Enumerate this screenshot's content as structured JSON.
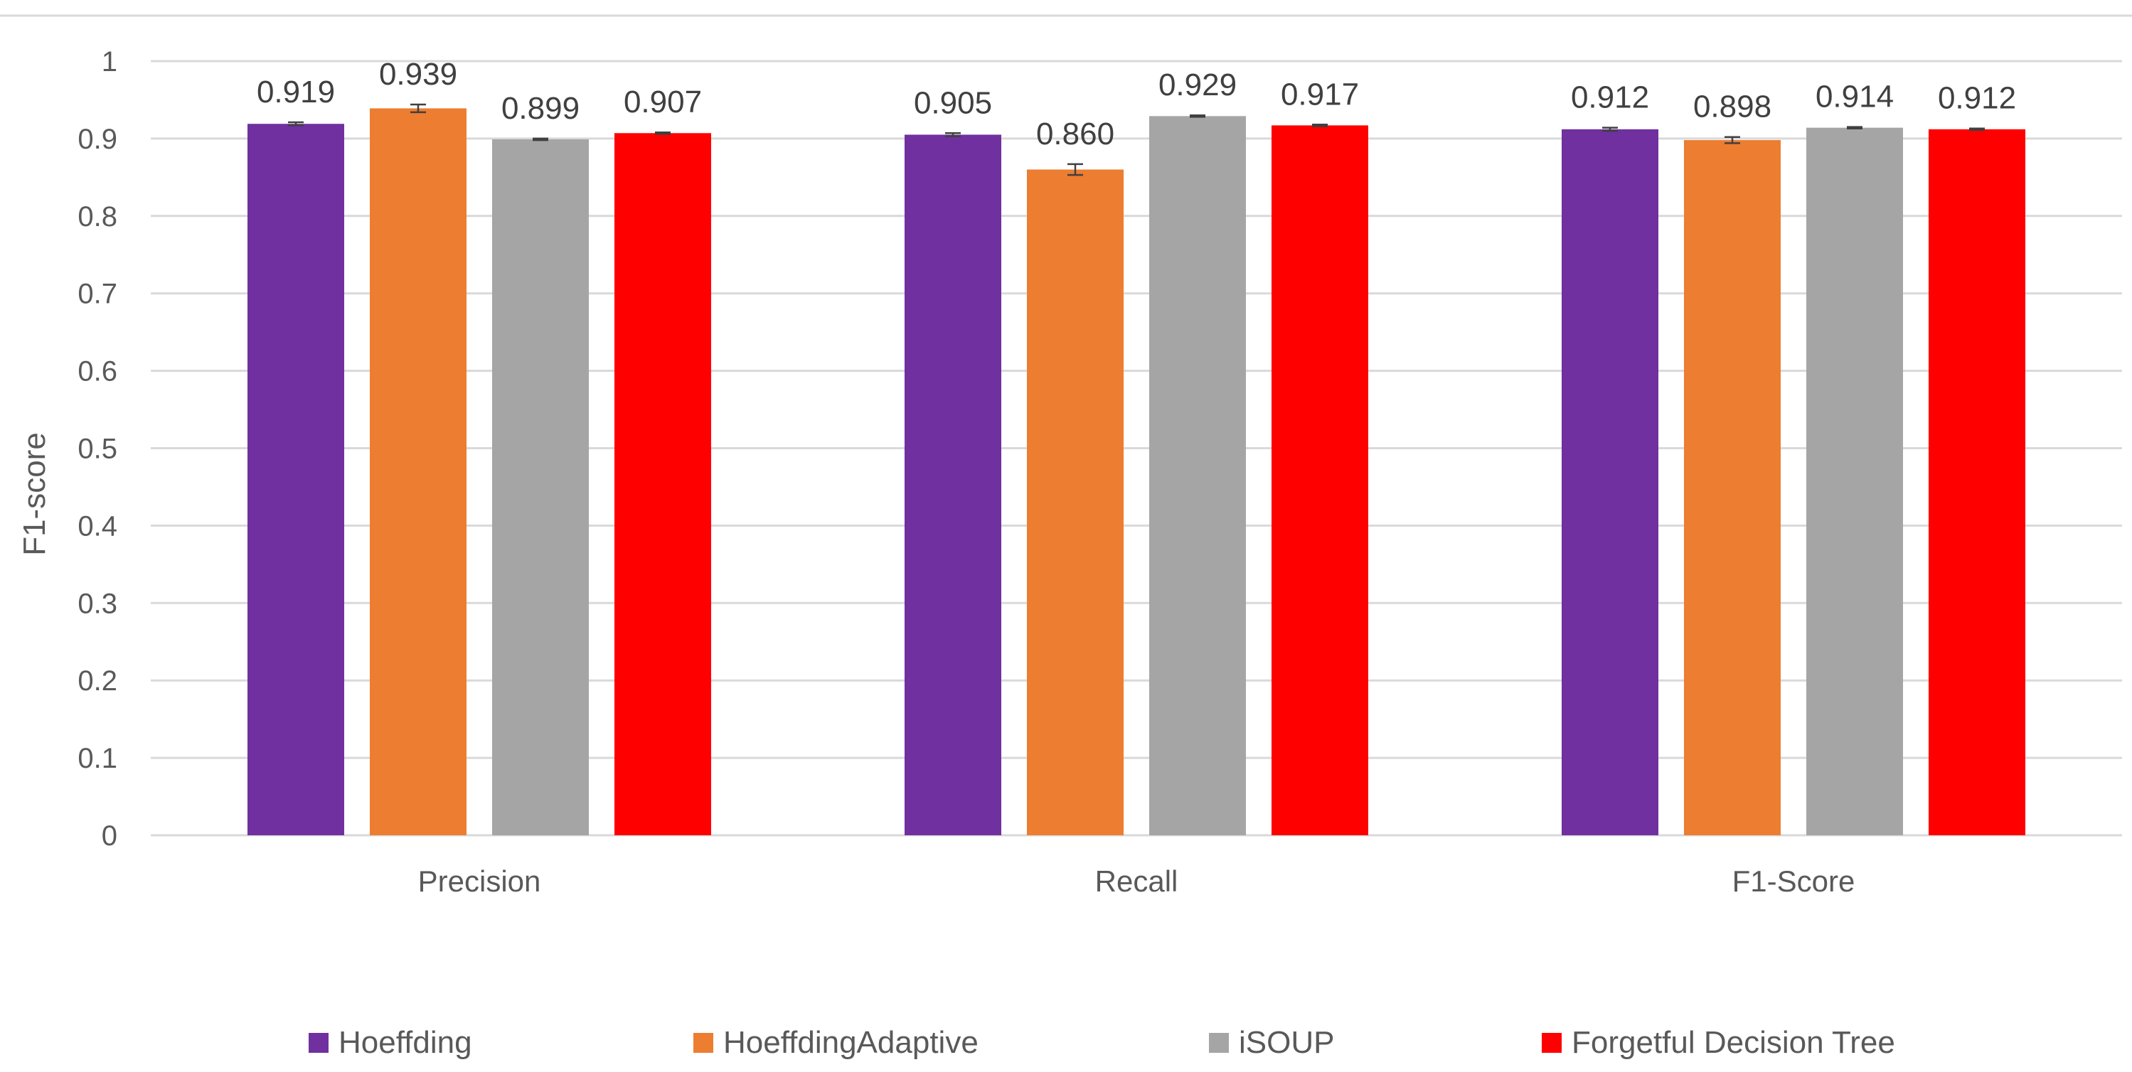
{
  "chart_data": {
    "type": "bar",
    "categories": [
      "Precision",
      "Recall",
      "F1-Score"
    ],
    "series": [
      {
        "name": "Hoeffding",
        "color": "#7030A0",
        "values": [
          0.919,
          0.905,
          0.912
        ],
        "errors": [
          0.002,
          0.002,
          0.002
        ],
        "labels": [
          "0.919",
          "0.905",
          "0.912"
        ]
      },
      {
        "name": "HoeffdingAdaptive",
        "color": "#ED7D31",
        "values": [
          0.939,
          0.86,
          0.898
        ],
        "errors": [
          0.005,
          0.007,
          0.004
        ],
        "labels": [
          "0.939",
          "0.860",
          "0.898"
        ]
      },
      {
        "name": "iSOUP",
        "color": "#A5A5A5",
        "values": [
          0.899,
          0.929,
          0.914
        ],
        "errors": [
          0.001,
          0.001,
          0.001
        ],
        "labels": [
          "0.899",
          "0.929",
          "0.914"
        ]
      },
      {
        "name": "Forgetful Decision Tree",
        "color": "#FF0000",
        "values": [
          0.907,
          0.917,
          0.912
        ],
        "errors": [
          0.001,
          0.001,
          0.001
        ],
        "labels": [
          "0.907",
          "0.917",
          "0.912"
        ]
      }
    ],
    "title": "",
    "xlabel": "",
    "ylabel": "F1-score",
    "ylim": [
      0,
      1
    ],
    "yticks": [
      "0",
      "0.1",
      "0.2",
      "0.3",
      "0.4",
      "0.5",
      "0.6",
      "0.7",
      "0.8",
      "0.9",
      "1"
    ],
    "grid": true,
    "legend_position": "bottom"
  }
}
